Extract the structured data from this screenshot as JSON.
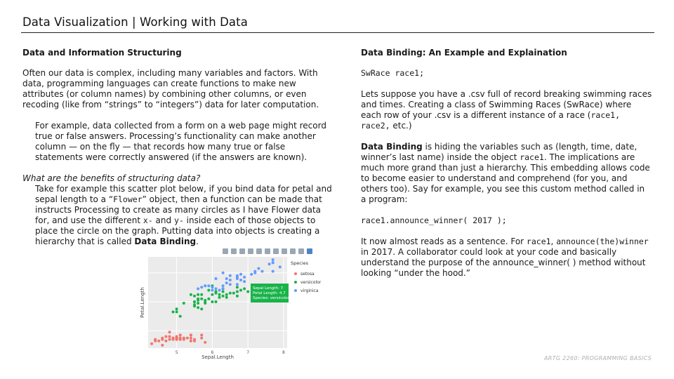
{
  "header": {
    "title": "Data Visualization | Working with Data"
  },
  "left": {
    "heading": "Data and Information Structuring",
    "para1": "Often our data is complex, including many variables and factors. With data, programming languages can create functions to make new attributes (or column names) by combining other columns, or even recoding (like from “strings” to “integers”) data for later computation.",
    "para2": "For example, data collected from a form on a web page might record true or false answers. Processing’s functionality can make another column — on the fly — that records how many true or false statements were correctly answered (if the answers are known).",
    "question": "What are the benefits of structuring data?",
    "para3_a": "Take for example this scatter plot below, if you bind data for petal and sepal length to a “",
    "para3_code": "Flower",
    "para3_b": "” object, then a function can be made that instructs Processing to create as many circles as I have Flower data for, and use the different ",
    "para3_x": "x-",
    "para3_c": " and ",
    "para3_y": "y-",
    "para3_d": " inside each of those objects to place the circle on the graph. Putting data into objects is creating a hierarchy that is called ",
    "para3_bold": "Data Binding",
    "para3_e": "."
  },
  "right": {
    "heading": "Data Binding: An Example and Explaination",
    "code1": "SwRace race1;",
    "para1_a": "Lets suppose you have a .csv full of record breaking swimming races and times. Creating a class of Swimming Races (SwRace) where each row of your .csv is a different instance of a race (",
    "para1_code": "race1, race2,",
    "para1_b": " etc.)",
    "para2_bold": "Data Binding",
    "para2_a": " is hiding the variables such as (length, time, date, winner’s last name) inside the object ",
    "para2_code": "race1",
    "para2_b": ". The implications are much more grand than just a hierarchy. This embedding allows code to become easier to understand and comprehend (for you, and others too). Say for example, you see this custom method called in a program:",
    "code2": "race1.announce_winner( 2017 );",
    "para3_a": "It now almost reads as a sentence. For ",
    "para3_code1": "race1",
    "para3_b": ", ",
    "para3_code2": "announce(the)winner",
    "para3_c": " in 2017. A collaborator could look at your code and basically understand the purpose of the announce_winner( ) method without looking “under the hood.”"
  },
  "footer": {
    "text": "ARTG 2260: PROGRAMMING BASICS"
  },
  "chart_data": {
    "type": "scatter",
    "xlabel": "Sepal.Length",
    "ylabel": "Petal.Length",
    "xticks": [
      "5",
      "6",
      "7",
      "8"
    ],
    "legend_title": "Species",
    "legend": [
      "setosa",
      "versicolor",
      "virginica"
    ],
    "legend_position": "right",
    "colors": {
      "setosa": "#f0766e",
      "versicolor": "#19b34a",
      "virginica": "#619cff"
    },
    "tooltip": [
      "Sepal Length: 7",
      "Petal Length: 4.7",
      "Species: versicolor"
    ],
    "xlim": [
      4.2,
      8.1
    ],
    "ylim": [
      0.8,
      7.1
    ],
    "series": [
      {
        "name": "setosa",
        "points": [
          [
            5.1,
            1.4
          ],
          [
            4.9,
            1.4
          ],
          [
            4.7,
            1.3
          ],
          [
            4.6,
            1.5
          ],
          [
            5.0,
            1.4
          ],
          [
            5.4,
            1.7
          ],
          [
            4.6,
            1.4
          ],
          [
            5.0,
            1.5
          ],
          [
            4.4,
            1.4
          ],
          [
            4.9,
            1.5
          ],
          [
            5.4,
            1.5
          ],
          [
            4.8,
            1.6
          ],
          [
            4.8,
            1.4
          ],
          [
            4.3,
            1.1
          ],
          [
            5.8,
            1.2
          ],
          [
            5.7,
            1.5
          ],
          [
            5.4,
            1.3
          ],
          [
            5.1,
            1.4
          ],
          [
            5.7,
            1.7
          ],
          [
            5.1,
            1.5
          ],
          [
            5.4,
            1.7
          ],
          [
            5.1,
            1.5
          ],
          [
            4.6,
            1.0
          ],
          [
            5.1,
            1.7
          ],
          [
            4.8,
            1.9
          ],
          [
            5.0,
            1.6
          ],
          [
            5.2,
            1.5
          ],
          [
            5.2,
            1.4
          ],
          [
            4.7,
            1.6
          ],
          [
            5.5,
            1.3
          ],
          [
            4.9,
            1.5
          ],
          [
            5.5,
            1.4
          ],
          [
            4.4,
            1.3
          ],
          [
            5.0,
            1.5
          ],
          [
            4.5,
            1.3
          ],
          [
            5.3,
            1.5
          ],
          [
            5.0,
            1.4
          ]
        ]
      },
      {
        "name": "versicolor",
        "points": [
          [
            7.0,
            4.7
          ],
          [
            6.4,
            4.5
          ],
          [
            6.9,
            4.9
          ],
          [
            5.5,
            4.0
          ],
          [
            6.5,
            4.6
          ],
          [
            5.7,
            4.5
          ],
          [
            6.3,
            4.7
          ],
          [
            4.9,
            3.3
          ],
          [
            6.6,
            4.6
          ],
          [
            5.2,
            3.9
          ],
          [
            5.0,
            3.5
          ],
          [
            5.9,
            4.2
          ],
          [
            6.0,
            4.0
          ],
          [
            6.1,
            4.7
          ],
          [
            5.6,
            3.6
          ],
          [
            6.7,
            4.4
          ],
          [
            5.6,
            4.5
          ],
          [
            5.8,
            4.1
          ],
          [
            6.2,
            4.5
          ],
          [
            5.6,
            3.9
          ],
          [
            5.9,
            4.8
          ],
          [
            6.1,
            4.0
          ],
          [
            6.3,
            4.9
          ],
          [
            6.1,
            4.7
          ],
          [
            6.4,
            4.3
          ],
          [
            6.8,
            4.8
          ],
          [
            6.7,
            5.0
          ],
          [
            6.0,
            4.5
          ],
          [
            5.7,
            3.5
          ],
          [
            5.5,
            3.8
          ],
          [
            5.5,
            3.7
          ],
          [
            5.8,
            3.9
          ],
          [
            6.0,
            5.1
          ],
          [
            5.4,
            4.5
          ],
          [
            6.7,
            4.7
          ],
          [
            6.3,
            4.4
          ],
          [
            5.6,
            4.1
          ],
          [
            5.5,
            4.0
          ],
          [
            5.5,
            4.4
          ],
          [
            6.1,
            4.6
          ],
          [
            5.8,
            4.0
          ],
          [
            5.0,
            3.3
          ],
          [
            5.6,
            4.2
          ],
          [
            5.7,
            4.2
          ],
          [
            6.2,
            4.3
          ],
          [
            5.1,
            3.0
          ]
        ]
      },
      {
        "name": "virginica",
        "points": [
          [
            6.3,
            6.0
          ],
          [
            5.8,
            5.1
          ],
          [
            7.1,
            5.9
          ],
          [
            6.5,
            5.8
          ],
          [
            7.6,
            6.6
          ],
          [
            7.3,
            6.3
          ],
          [
            6.7,
            5.8
          ],
          [
            7.2,
            6.1
          ],
          [
            6.4,
            5.3
          ],
          [
            6.8,
            5.5
          ],
          [
            5.7,
            5.0
          ],
          [
            6.5,
            5.5
          ],
          [
            7.7,
            6.7
          ],
          [
            7.7,
            6.9
          ],
          [
            6.0,
            5.0
          ],
          [
            6.9,
            5.7
          ],
          [
            5.6,
            4.9
          ],
          [
            7.7,
            6.7
          ],
          [
            6.3,
            4.9
          ],
          [
            6.7,
            5.7
          ],
          [
            7.2,
            6.0
          ],
          [
            6.2,
            4.8
          ],
          [
            6.1,
            4.9
          ],
          [
            6.4,
            5.6
          ],
          [
            7.4,
            6.1
          ],
          [
            7.9,
            6.4
          ],
          [
            6.3,
            5.1
          ],
          [
            6.1,
            5.6
          ],
          [
            7.7,
            6.1
          ],
          [
            6.0,
            4.8
          ],
          [
            6.9,
            5.4
          ],
          [
            6.7,
            5.6
          ],
          [
            5.8,
            5.1
          ],
          [
            6.8,
            5.9
          ],
          [
            6.7,
            5.2
          ],
          [
            6.5,
            5.2
          ],
          [
            5.9,
            5.1
          ]
        ]
      }
    ]
  }
}
